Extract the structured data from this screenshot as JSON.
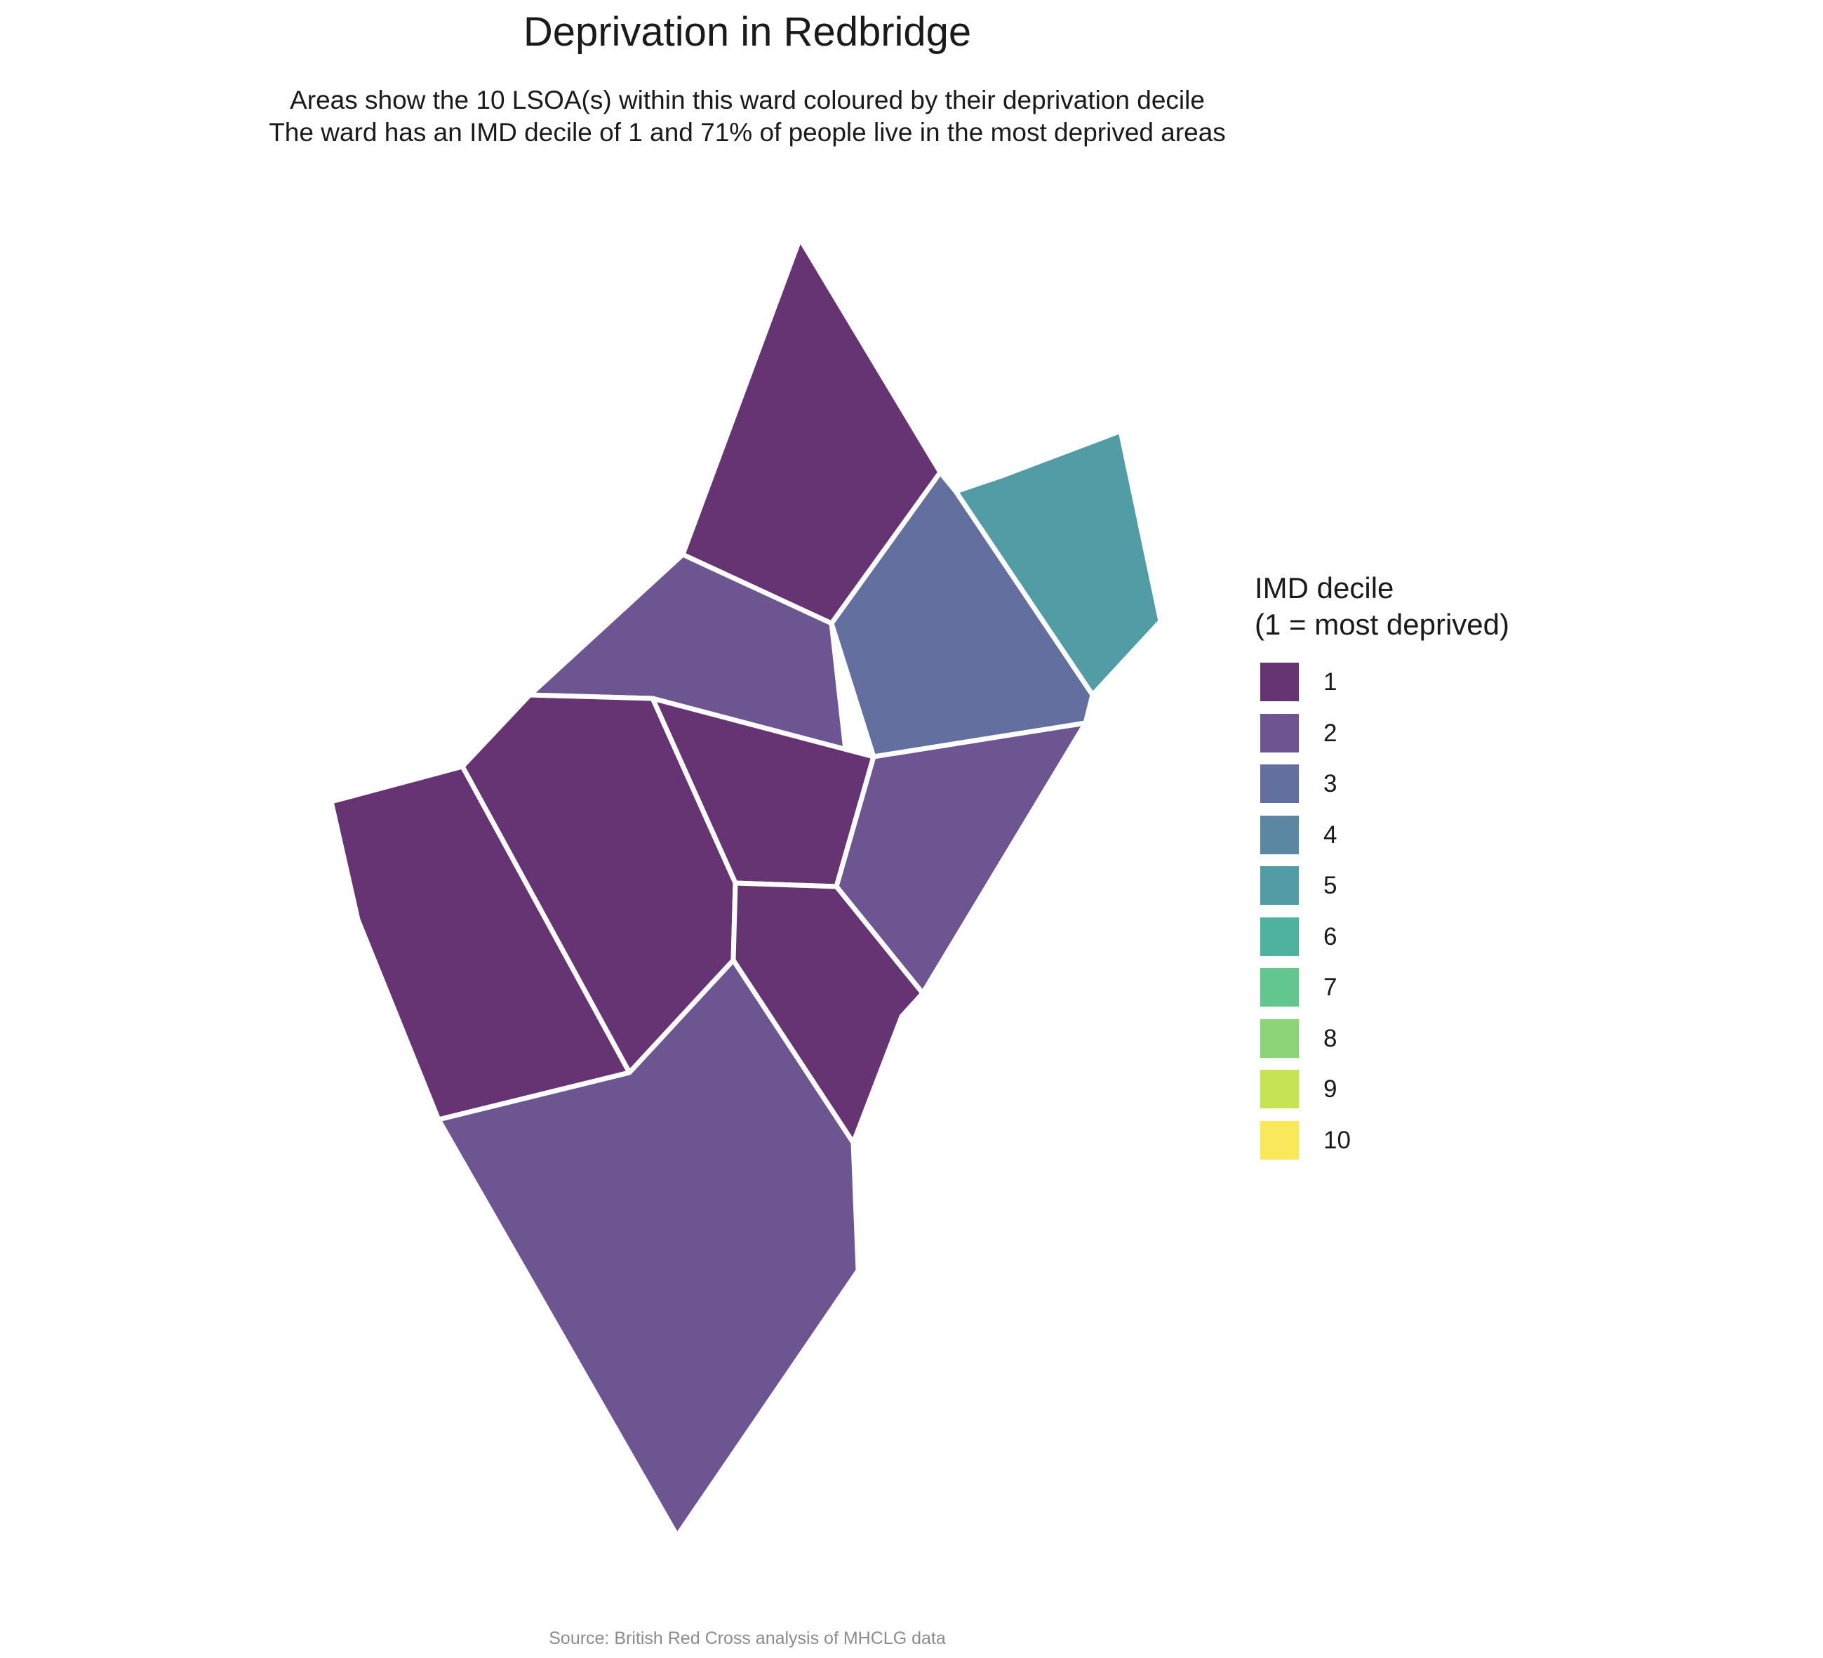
{
  "title": "Deprivation in Redbridge",
  "subtitle_line1": "Areas show the 10 LSOA(s) within this ward coloured by their deprivation decile",
  "subtitle_line2": "The ward has an IMD decile of 1 and 71% of people live in the most deprived areas",
  "legend": {
    "title_line1": "IMD decile",
    "title_line2": "(1 = most deprived)",
    "items": [
      {
        "label": "1",
        "color": "#673473"
      },
      {
        "label": "2",
        "color": "#6d5592"
      },
      {
        "label": "3",
        "color": "#636f9e"
      },
      {
        "label": "4",
        "color": "#5b87a3"
      },
      {
        "label": "5",
        "color": "#529ca5"
      },
      {
        "label": "6",
        "color": "#4fb29e"
      },
      {
        "label": "7",
        "color": "#61c78e"
      },
      {
        "label": "8",
        "color": "#8cd577"
      },
      {
        "label": "9",
        "color": "#c6e255"
      },
      {
        "label": "10",
        "color": "#fae85b"
      }
    ]
  },
  "areas": [
    {
      "name": "lsoa-north-tip",
      "decile": 1
    },
    {
      "name": "lsoa-northeast",
      "decile": 5
    },
    {
      "name": "lsoa-upper-east",
      "decile": 3
    },
    {
      "name": "lsoa-upper-middle",
      "decile": 2
    },
    {
      "name": "lsoa-center",
      "decile": 1
    },
    {
      "name": "lsoa-west-center",
      "decile": 1
    },
    {
      "name": "lsoa-far-west",
      "decile": 1
    },
    {
      "name": "lsoa-east-middle",
      "decile": 2
    },
    {
      "name": "lsoa-south-center",
      "decile": 1
    },
    {
      "name": "lsoa-south",
      "decile": 2
    }
  ],
  "source": "Source: British Red Cross analysis of MHCLG data"
}
